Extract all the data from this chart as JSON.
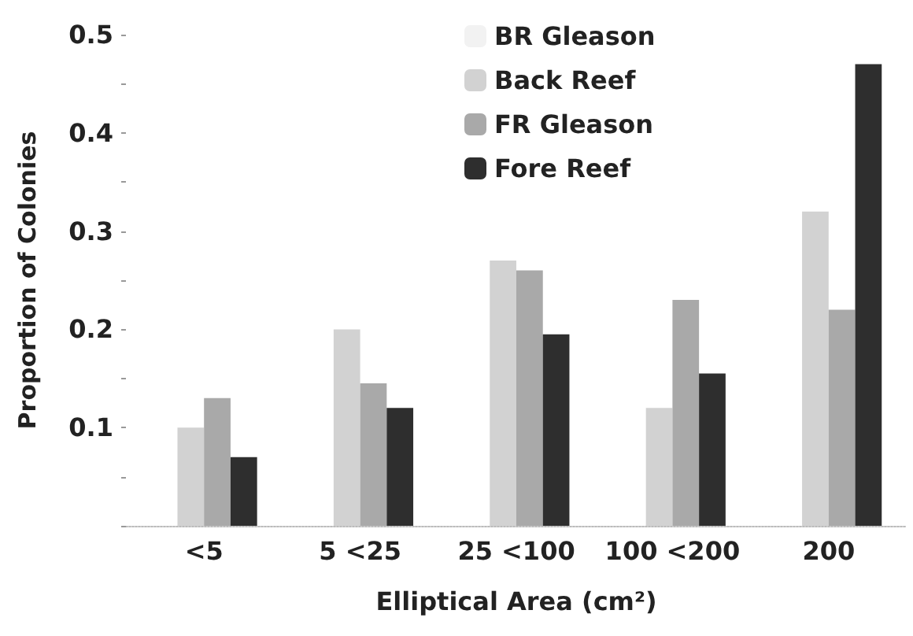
{
  "chart_data": {
    "type": "bar",
    "xlabel": "Elliptical Area (cm²)",
    "ylabel": "Proportion of Colonies",
    "categories": [
      "<5",
      "5 <25",
      "25 <100",
      "100 <200",
      "200"
    ],
    "series": [
      {
        "name": "BR Gleason",
        "color": "#f2f2f2",
        "values": [
          null,
          null,
          null,
          null,
          null
        ]
      },
      {
        "name": "Back Reef",
        "color": "#d2d2d2",
        "values": [
          0.1,
          0.2,
          0.27,
          0.12,
          0.32
        ]
      },
      {
        "name": "FR Gleason",
        "color": "#a9a9a9",
        "values": [
          0.13,
          0.145,
          0.26,
          0.23,
          0.22
        ]
      },
      {
        "name": "Fore Reef",
        "color": "#2e2e2e",
        "values": [
          0.07,
          0.12,
          0.195,
          0.155,
          0.47
        ]
      }
    ],
    "ylim": [
      0,
      0.5
    ],
    "yticks": [
      {
        "value": 0,
        "label": null
      },
      {
        "value": 0.05,
        "label": null
      },
      0.1,
      {
        "value": 0.15,
        "label": null
      },
      0.2,
      {
        "value": 0.25,
        "label": null
      },
      0.3,
      {
        "value": 0.35,
        "label": null
      },
      0.4,
      {
        "value": 0.45,
        "label": null
      },
      0.5
    ],
    "grid": false,
    "legend": "top right"
  }
}
